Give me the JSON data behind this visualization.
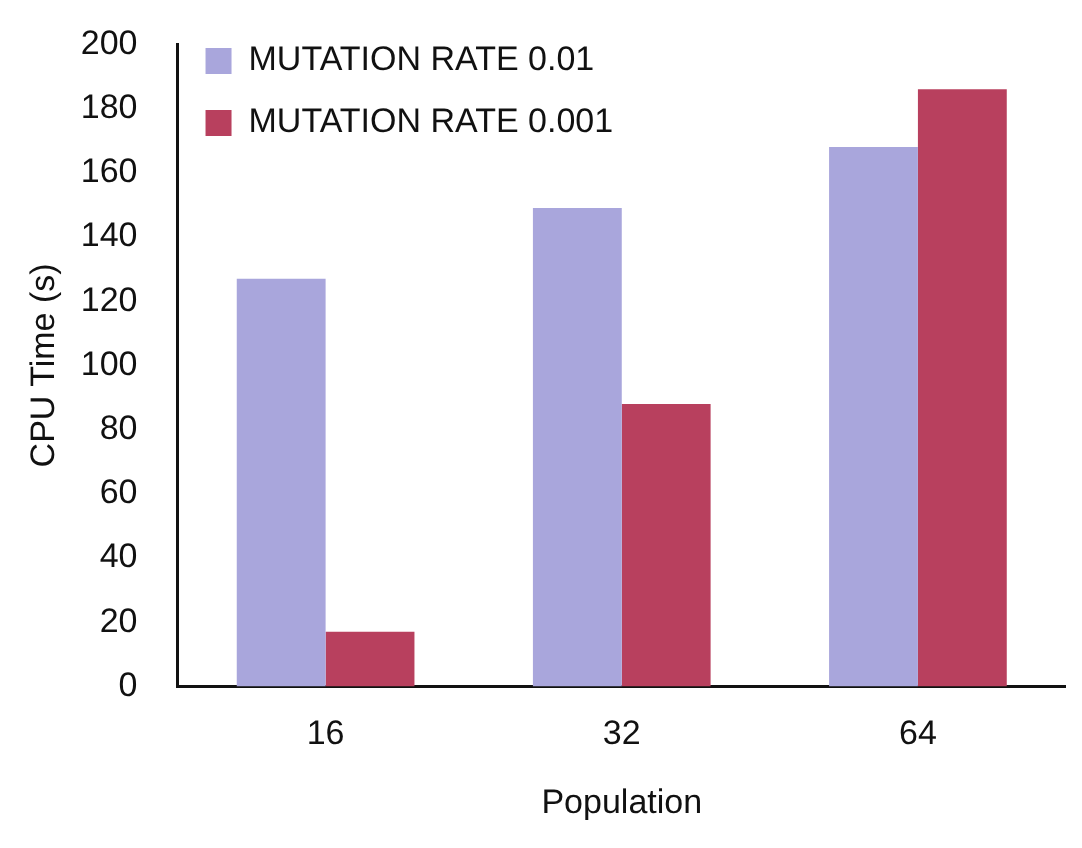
{
  "chart_data": {
    "type": "bar",
    "xlabel": "Population",
    "ylabel": "CPU Time (s)",
    "categories": [
      "16",
      "32",
      "64"
    ],
    "series": [
      {
        "name": "MUTATION RATE 0.01",
        "color": "#a9a6dc",
        "values": [
          127,
          149,
          168
        ]
      },
      {
        "name": "MUTATION RATE 0.001",
        "color": "#b8405e",
        "values": [
          17,
          88,
          186
        ]
      }
    ],
    "ylim": [
      0,
      200
    ],
    "yticks": [
      0,
      20,
      40,
      60,
      80,
      100,
      120,
      140,
      160,
      180,
      200
    ],
    "grid": false,
    "legend": "top left"
  }
}
